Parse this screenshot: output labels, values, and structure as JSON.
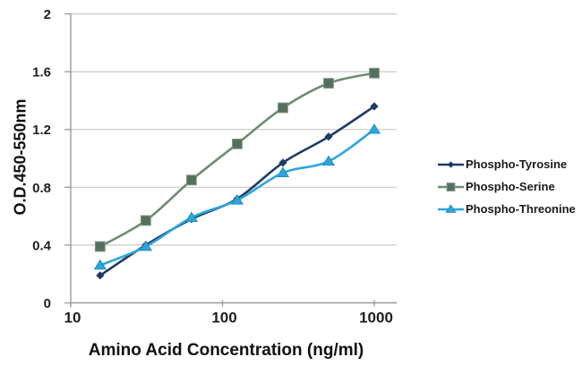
{
  "chart_data": {
    "type": "line",
    "title": "",
    "xlabel": "Amino Acid Concentration (ng/ml)",
    "ylabel": "O.D.450-550nm",
    "x_scale": "log",
    "xlim": [
      10,
      1400
    ],
    "ylim": [
      0,
      2
    ],
    "grid": "horizontal-only",
    "legend_position": "right-middle",
    "x": [
      15.625,
      31.25,
      62.5,
      125,
      250,
      500,
      1000
    ],
    "x_ticks": [
      10,
      100,
      1000
    ],
    "x_tick_labels": [
      "10",
      "100",
      "1000"
    ],
    "y_ticks": [
      0,
      0.4,
      0.8,
      1.2,
      1.6,
      2
    ],
    "y_tick_labels": [
      "0",
      "0.4",
      "0.8",
      "1.2",
      "1.6",
      "2"
    ],
    "series": [
      {
        "name": "Phospho-Tyrosine",
        "marker": "diamond",
        "color": "#1E3A64",
        "marker_fill": "#1E3A64",
        "marker_edge": "#1E3A64",
        "values": [
          0.19,
          0.4,
          0.58,
          0.72,
          0.97,
          1.15,
          1.36
        ]
      },
      {
        "name": "Phospho-Serine",
        "marker": "square",
        "color": "#6D8C76",
        "marker_fill": "#53705F",
        "marker_edge": "#7E9683",
        "values": [
          0.39,
          0.57,
          0.85,
          1.1,
          1.35,
          1.52,
          1.59
        ]
      },
      {
        "name": "Phospho-Threonine",
        "marker": "triangle",
        "color": "#2BA6DA",
        "marker_fill": "#2BA6DA",
        "marker_edge": "#1D86B5",
        "values": [
          0.26,
          0.39,
          0.59,
          0.71,
          0.9,
          0.98,
          1.2
        ]
      }
    ],
    "colors": {
      "background": "#FFFFFF",
      "gridline": "#C9C9C9",
      "axis": "#999999",
      "tick_text": "#1F1F1F"
    }
  }
}
